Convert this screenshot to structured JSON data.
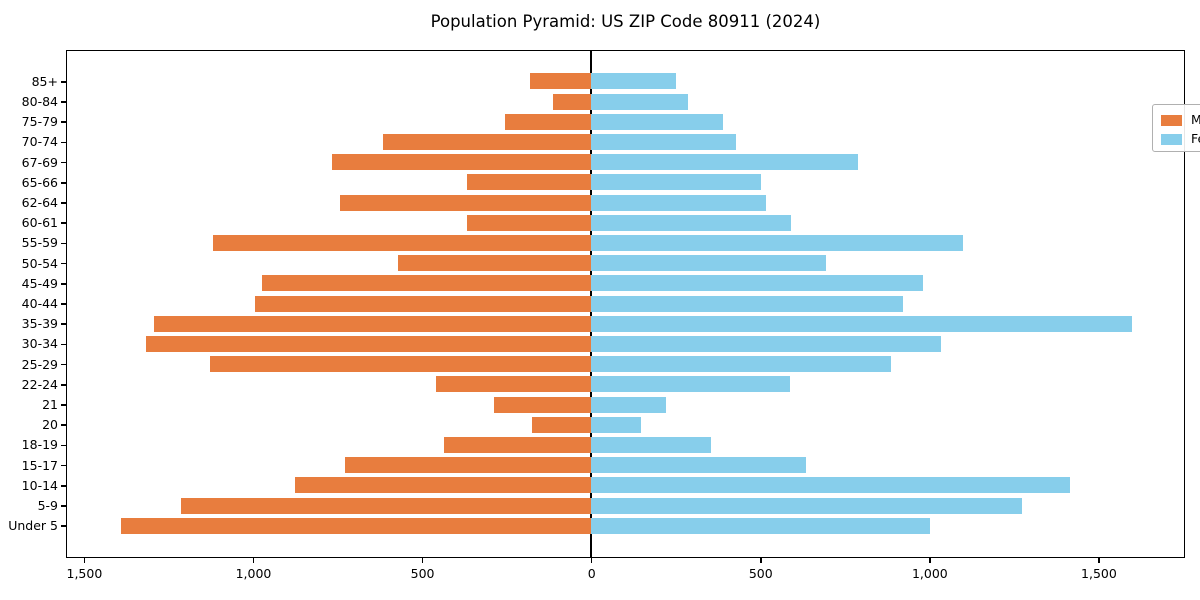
{
  "title": "Population Pyramid: US ZIP Code 80911 (2024)",
  "legend": {
    "male_label": "Male",
    "female_label": "Female"
  },
  "colors": {
    "male": "#e87d3e",
    "female": "#87ceeb",
    "axis": "#000000",
    "background": "#ffffff",
    "legend_border": "#b0b0b0"
  },
  "chart_data": {
    "type": "bar",
    "subtype": "population-pyramid",
    "orientation": "horizontal",
    "title": "Population Pyramid: US ZIP Code 80911 (2024)",
    "xlabel": "",
    "ylabel": "",
    "categories_top_to_bottom": [
      "85+",
      "80-84",
      "75-79",
      "70-74",
      "67-69",
      "65-66",
      "62-64",
      "60-61",
      "55-59",
      "50-54",
      "45-49",
      "40-44",
      "35-39",
      "30-34",
      "25-29",
      "22-24",
      "21",
      "20",
      "18-19",
      "15-17",
      "10-14",
      "5-9",
      "Under 5"
    ],
    "series": [
      {
        "name": "Male",
        "side": "left",
        "color": "#e87d3e",
        "values": [
          180,
          112,
          255,
          615,
          766,
          368,
          742,
          368,
          1117,
          570,
          972,
          995,
          1292,
          1315,
          1128,
          459,
          286,
          175,
          436,
          728,
          877,
          1212,
          1390
        ]
      },
      {
        "name": "Female",
        "side": "right",
        "color": "#87ceeb",
        "values": [
          250,
          287,
          390,
          427,
          790,
          502,
          517,
          590,
          1100,
          694,
          982,
          922,
          1600,
          1035,
          887,
          587,
          221,
          148,
          353,
          636,
          1415,
          1273,
          1003
        ]
      }
    ],
    "x_tick_values": [
      -1500,
      -1000,
      -500,
      0,
      500,
      1000,
      1500
    ],
    "x_tick_labels": [
      "1,500",
      "1,000",
      "500",
      "0",
      "500",
      "1,000",
      "1,500"
    ],
    "xlim": [
      -1550,
      1750
    ],
    "grid": false,
    "legend_position": "upper-right"
  }
}
